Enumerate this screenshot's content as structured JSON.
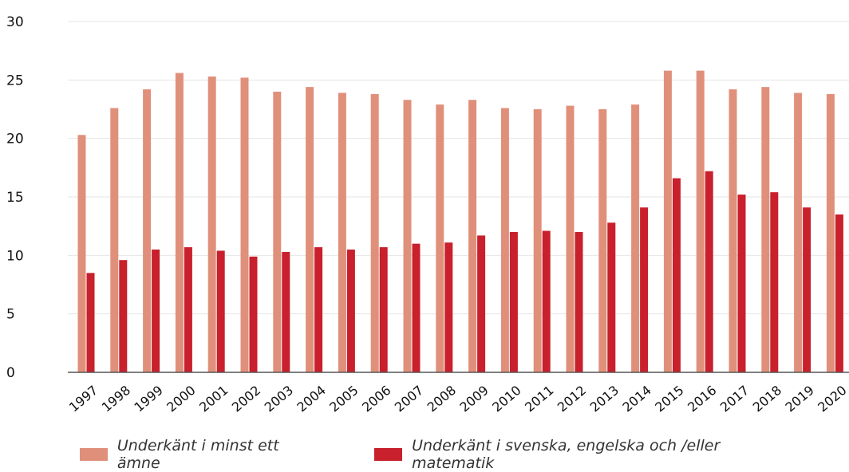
{
  "chart_data": {
    "type": "bar",
    "categories": [
      "1997",
      "1998",
      "1999",
      "2000",
      "2001",
      "2002",
      "2003",
      "2004",
      "2005",
      "2006",
      "2007",
      "2008",
      "2009",
      "2010",
      "2011",
      "2012",
      "2013",
      "2014",
      "2015",
      "2016",
      "2017",
      "2018",
      "2019",
      "2020"
    ],
    "series": [
      {
        "name": "Underkänt i minst ett ämne",
        "color": "#E0907A",
        "values": [
          20.3,
          22.6,
          24.2,
          25.6,
          25.3,
          25.2,
          24.0,
          24.4,
          23.9,
          23.8,
          23.3,
          22.9,
          23.3,
          22.6,
          22.5,
          22.8,
          22.5,
          22.9,
          25.8,
          25.8,
          24.2,
          24.4,
          23.9,
          23.8
        ]
      },
      {
        "name": "Underkänt i svenska, engelska och /eller matematik",
        "color": "#C8202C",
        "values": [
          8.5,
          9.6,
          10.5,
          10.7,
          10.4,
          9.9,
          10.3,
          10.7,
          10.5,
          10.7,
          11.0,
          11.1,
          11.7,
          12.0,
          12.1,
          12.0,
          12.8,
          14.1,
          16.6,
          17.2,
          15.2,
          15.4,
          14.1,
          13.5
        ]
      }
    ],
    "yticks": [
      "0",
      "5",
      "10",
      "15",
      "20",
      "25",
      "30"
    ],
    "ylim": [
      0,
      30
    ],
    "grid": true,
    "legend_position": "bottom-left"
  }
}
